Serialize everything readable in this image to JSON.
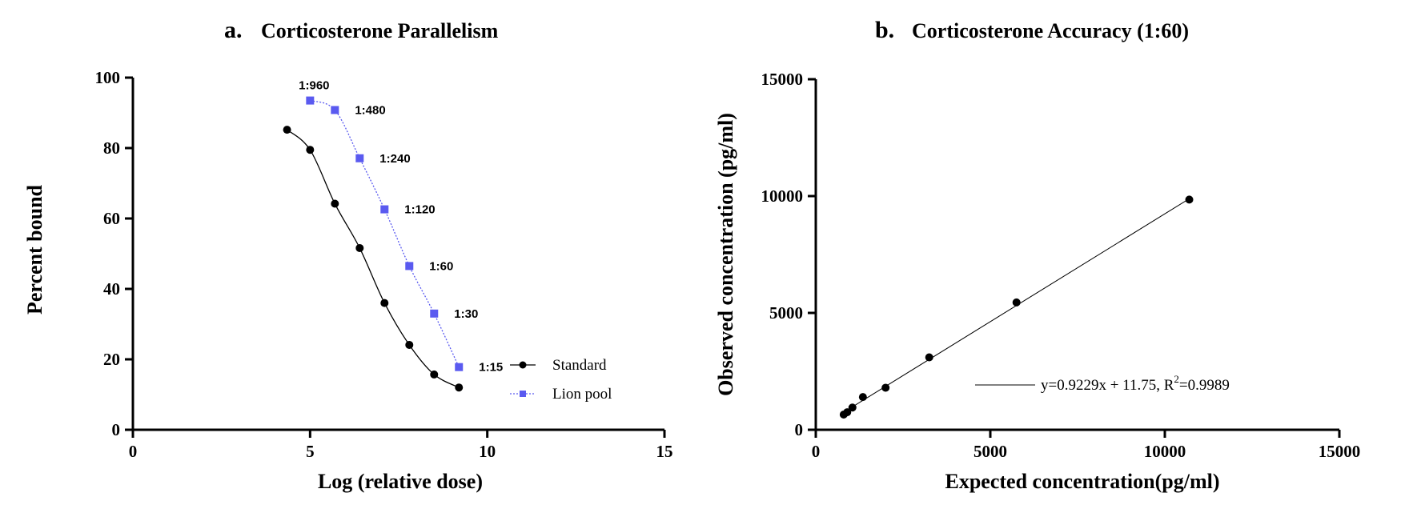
{
  "chart_data": [
    {
      "panel_letter": "a.",
      "title": "Corticosterone Parallelism",
      "type": "line",
      "xlabel": "Log (relative dose)",
      "ylabel": "Percent bound",
      "xlim": [
        0,
        15
      ],
      "ylim": [
        0,
        100
      ],
      "xticks": [
        "0",
        "5",
        "10",
        "15"
      ],
      "yticks": [
        "0",
        "20",
        "40",
        "60",
        "80",
        "100"
      ],
      "grid": false,
      "legend_position": "bottom-right",
      "series": [
        {
          "name": "Standard",
          "marker": "circle",
          "line_style": "solid",
          "color": "#000000",
          "x": [
            4.35,
            5.0,
            5.7,
            6.4,
            7.1,
            7.8,
            8.5,
            9.2
          ],
          "y": [
            85.2,
            79.5,
            64.2,
            51.6,
            36.0,
            24.1,
            15.7,
            12.0
          ]
        },
        {
          "name": "Lion pool",
          "marker": "square",
          "line_style": "dotted",
          "color": "#5A5AF0",
          "x": [
            5.0,
            5.7,
            6.4,
            7.1,
            7.8,
            8.5,
            9.2
          ],
          "y": [
            93.5,
            90.8,
            77.1,
            62.6,
            46.5,
            33.0,
            17.8
          ],
          "point_labels": [
            "1:960",
            "1:480",
            "1:240",
            "1:120",
            "1:60",
            "1:30",
            "1:15"
          ]
        }
      ]
    },
    {
      "panel_letter": "b.",
      "title": "Corticosterone Accuracy (1:60)",
      "type": "scatter",
      "xlabel": "Expected concentration(pg/ml)",
      "ylabel": "Observed concentration (pg/ml)",
      "xlim": [
        0,
        15000
      ],
      "ylim": [
        0,
        15000
      ],
      "xticks": [
        "0",
        "5000",
        "10000",
        "15000"
      ],
      "yticks": [
        "0",
        "5000",
        "10000",
        "15000"
      ],
      "grid": false,
      "legend_position": "bottom-right",
      "series": [
        {
          "name": "",
          "marker": "circle",
          "color": "#000000",
          "x": [
            800,
            900,
            1050,
            1350,
            2000,
            3250,
            5750,
            10700
          ],
          "y": [
            650,
            750,
            950,
            1400,
            1800,
            3100,
            5450,
            9850
          ]
        }
      ],
      "fit": {
        "slope": 0.9229,
        "intercept": 11.75,
        "x_range": [
          800,
          10700
        ],
        "legend_label_main": "y=0.9229x + 11.75, R",
        "legend_label_sup": "2",
        "legend_label_end": "=0.9989"
      }
    }
  ]
}
